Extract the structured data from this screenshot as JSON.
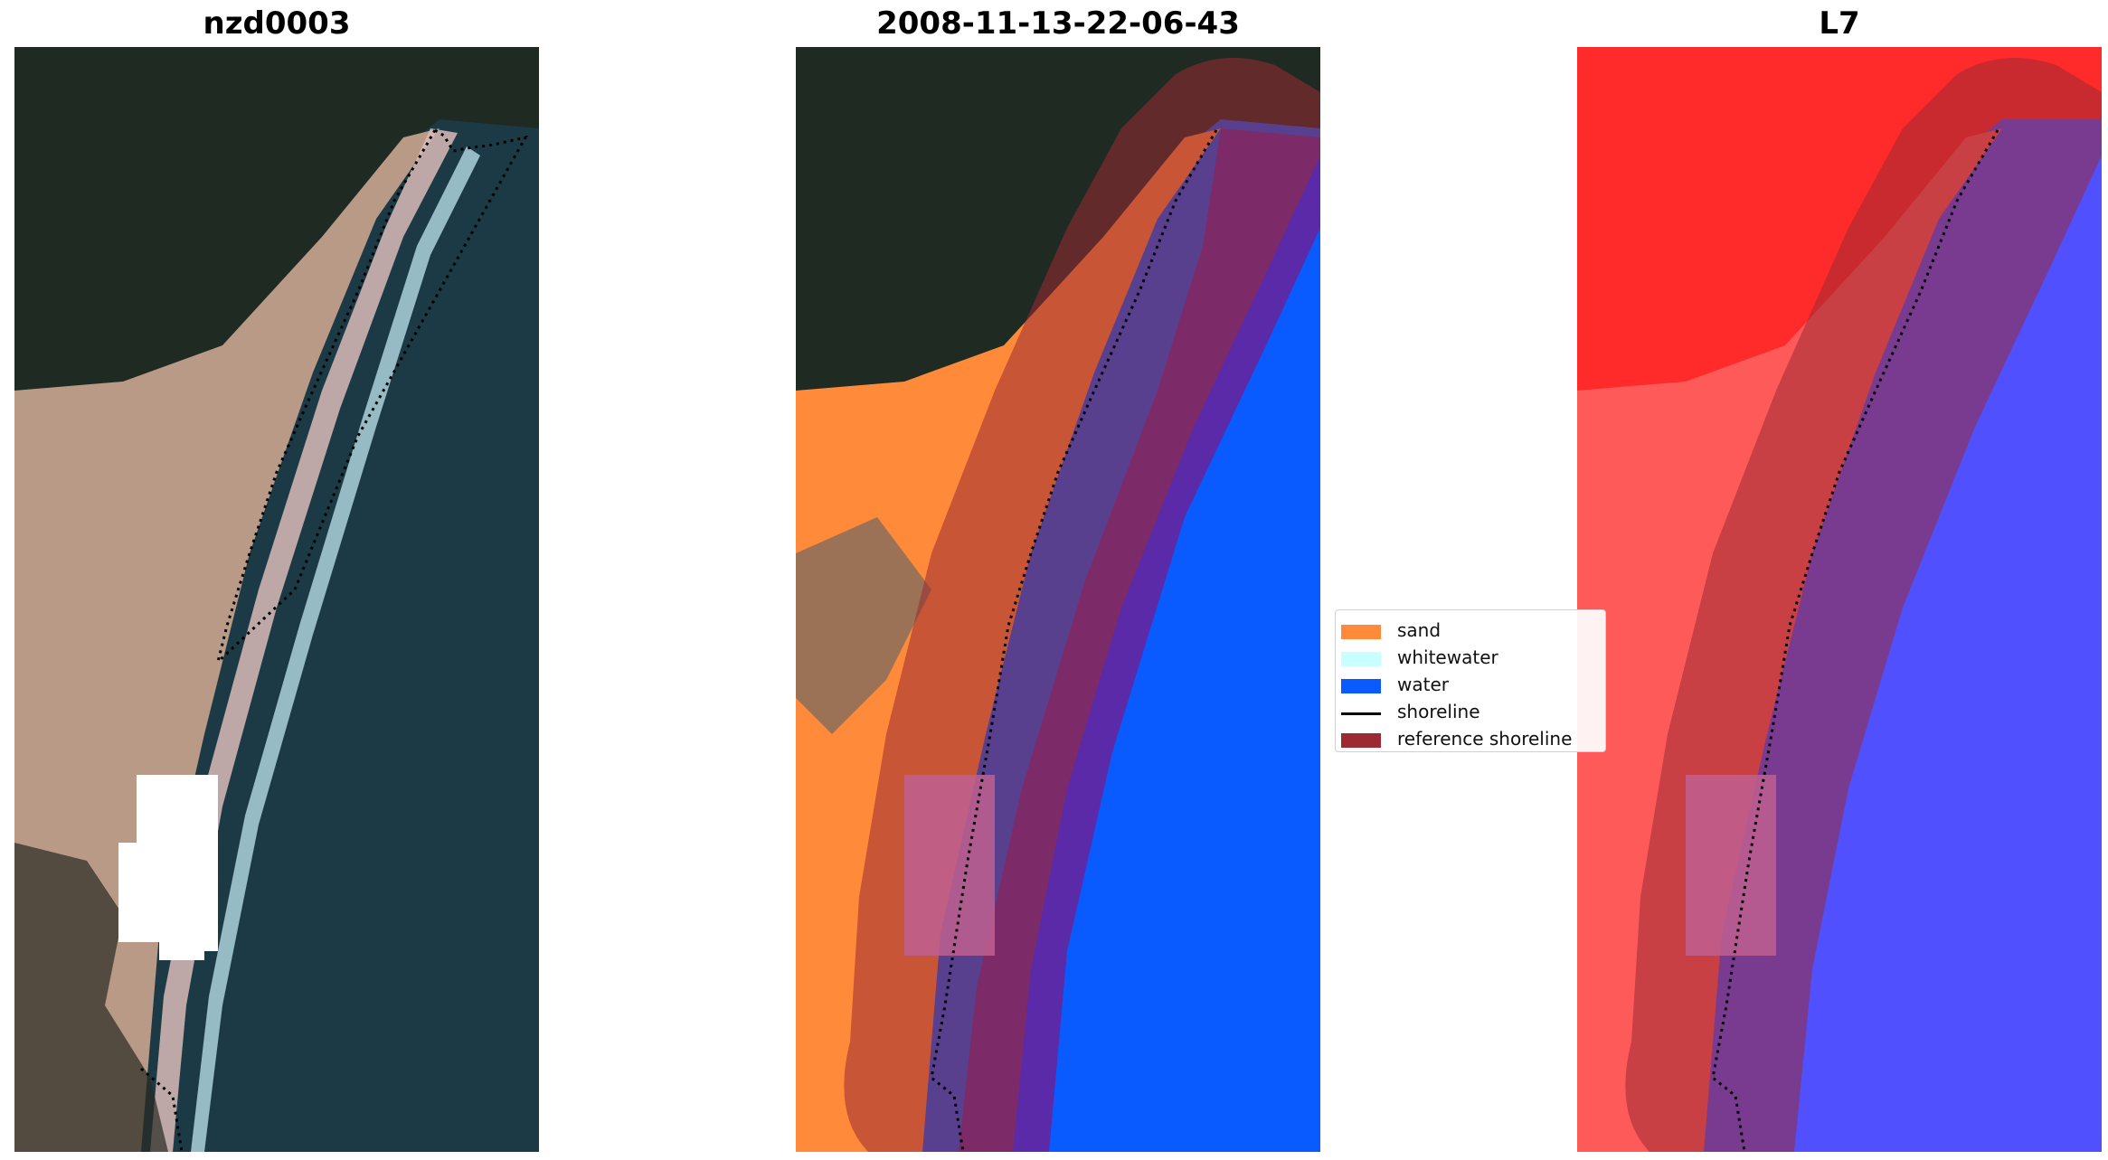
{
  "figure": {
    "panels": [
      {
        "title": "nzd0003"
      },
      {
        "title": "2008-11-13-22-06-43"
      },
      {
        "title": "L7"
      }
    ],
    "legend": {
      "placement": "center-right of middle panel",
      "items": [
        {
          "label": "sand",
          "color": "#ff8a3a",
          "kind": "patch"
        },
        {
          "label": "whitewater",
          "color": "#c8ffff",
          "kind": "patch"
        },
        {
          "label": "water",
          "color": "#0a5bff",
          "kind": "patch"
        },
        {
          "label": "shoreline",
          "color": "#000000",
          "kind": "line"
        },
        {
          "label": "reference shoreline",
          "color": "#9b2a33",
          "kind": "patch"
        }
      ]
    },
    "colors": {
      "rgb_land_dark": "#1f2a22",
      "rgb_sand": "#c9a68e",
      "rgb_sea": "#1c3a45",
      "class_sand": "#ff8a3a",
      "class_water": "#0a5bff",
      "reference_shoreline_overlay": "#9b2a33",
      "mndwi_land": "#ff2a2a",
      "mndwi_water": "#5050ff",
      "cloud_mask": "#ffffff"
    }
  }
}
